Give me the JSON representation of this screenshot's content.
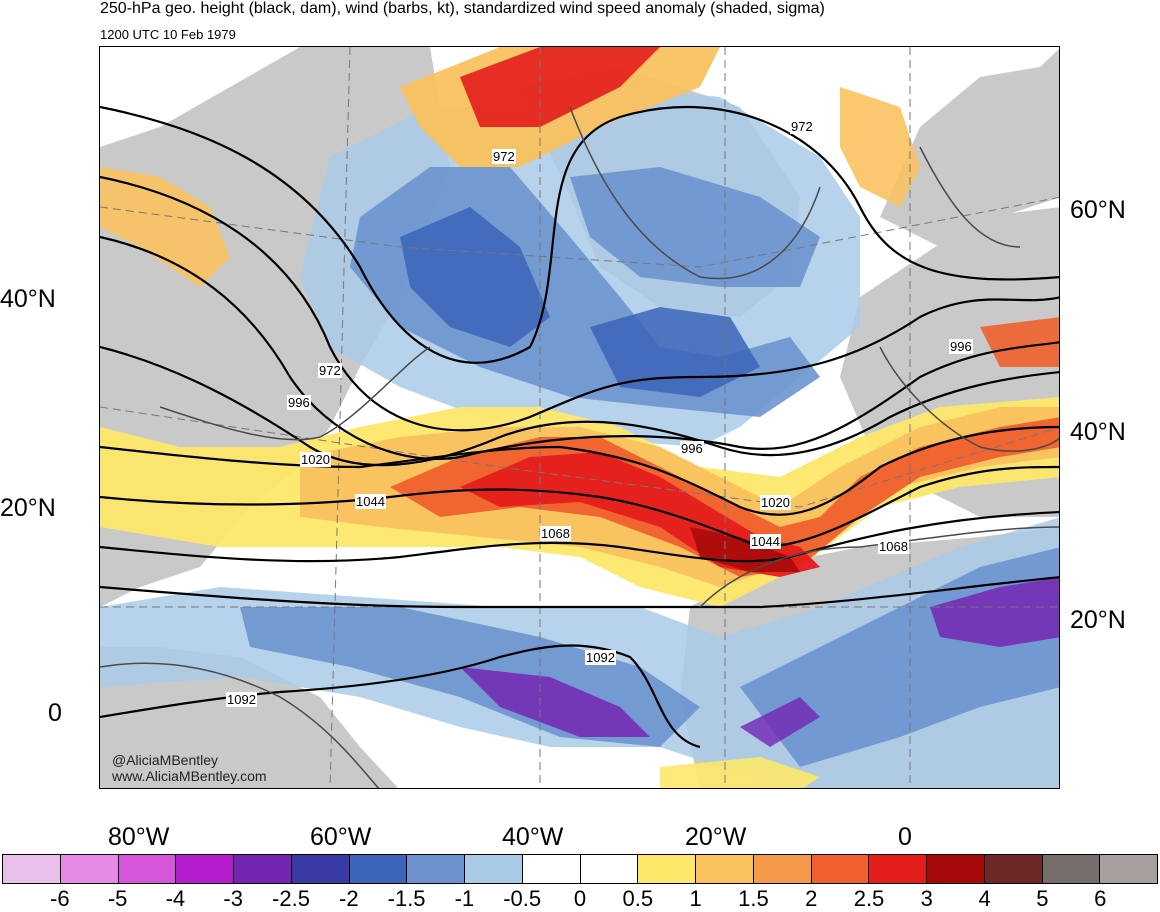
{
  "header": {
    "title": "250-hPa geo. height (black, dam), wind (barbs, kt), standardized wind speed anomaly (shaded, sigma)",
    "valid_time": "1200 UTC 10 Feb 1979"
  },
  "map": {
    "left_lat_labels": [
      "40°N",
      "20°N",
      "0"
    ],
    "right_lat_labels": [
      "60°N",
      "40°N",
      "20°N"
    ],
    "lon_labels": [
      "80°W",
      "60°W",
      "40°W",
      "20°W",
      "0"
    ],
    "contour_labels": [
      "972",
      "972",
      "972",
      "996",
      "996",
      "996",
      "1020",
      "1020",
      "1044",
      "1044",
      "1068",
      "1068",
      "1092",
      "1092"
    ]
  },
  "credits": {
    "handle": "@AliciaMBentley",
    "website": "www.AliciaMBentley.com"
  },
  "colorbar": {
    "colors": [
      "#eac0ea",
      "#e68ae6",
      "#d655d9",
      "#b41ecc",
      "#7326b4",
      "#3a3aa6",
      "#3c64b9",
      "#6d93cf",
      "#a9cbe8",
      "#ffffff",
      "#ffffff",
      "#fde86a",
      "#f9c25f",
      "#f49a4a",
      "#f0602e",
      "#e41d1d",
      "#a50909",
      "#6e2828",
      "#776e6b",
      "#a7a09f"
    ],
    "tick_labels": [
      "-6",
      "-5",
      "-4",
      "-3",
      "-2.5",
      "-2",
      "-1.5",
      "-1",
      "-0.5",
      "0",
      "0.5",
      "1",
      "1.5",
      "2",
      "2.5",
      "3",
      "4",
      "5",
      "6"
    ]
  }
}
